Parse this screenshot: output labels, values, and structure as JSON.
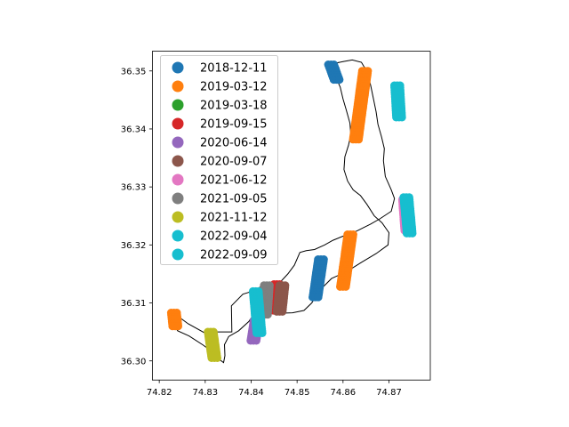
{
  "chart_data": {
    "type": "scatter",
    "title": "",
    "xlabel": "",
    "ylabel": "",
    "xlim": [
      74.8185,
      74.879
    ],
    "ylim": [
      36.2967,
      36.3534
    ],
    "grid": false,
    "legend_position": "top-left",
    "x_ticks": [
      {
        "value": 74.82,
        "label": "74.82"
      },
      {
        "value": 74.83,
        "label": "74.83"
      },
      {
        "value": 74.84,
        "label": "74.84"
      },
      {
        "value": 74.85,
        "label": "74.85"
      },
      {
        "value": 74.86,
        "label": "74.86"
      },
      {
        "value": 74.87,
        "label": "74.87"
      }
    ],
    "y_ticks": [
      {
        "value": 36.3,
        "label": "36.30"
      },
      {
        "value": 36.31,
        "label": "36.31"
      },
      {
        "value": 36.32,
        "label": "36.32"
      },
      {
        "value": 36.33,
        "label": "36.33"
      },
      {
        "value": 36.34,
        "label": "36.34"
      },
      {
        "value": 36.35,
        "label": "36.35"
      }
    ],
    "boundary": [
      [
        74.8575,
        36.3512
      ],
      [
        74.8582,
        36.3505
      ],
      [
        74.8585,
        36.3488
      ],
      [
        74.8594,
        36.3472
      ],
      [
        74.86,
        36.3452
      ],
      [
        74.8607,
        36.3433
      ],
      [
        74.8615,
        36.341
      ],
      [
        74.8617,
        36.339
      ],
      [
        74.8612,
        36.3372
      ],
      [
        74.8604,
        36.3352
      ],
      [
        74.8602,
        36.333
      ],
      [
        74.861,
        36.331
      ],
      [
        74.8622,
        36.3295
      ],
      [
        74.8638,
        36.3285
      ],
      [
        74.8652,
        36.327
      ],
      [
        74.8668,
        36.325
      ],
      [
        74.8685,
        36.3238
      ],
      [
        74.87,
        36.3221
      ],
      [
        74.8698,
        36.32
      ],
      [
        74.8672,
        36.3185
      ],
      [
        74.864,
        36.317
      ],
      [
        74.861,
        36.3155
      ],
      [
        74.8575,
        36.3142
      ],
      [
        74.8547,
        36.312
      ],
      [
        74.8532,
        36.31
      ],
      [
        74.8515,
        36.3087
      ],
      [
        74.849,
        36.3083
      ],
      [
        74.8455,
        36.3082
      ],
      [
        74.842,
        36.3082
      ],
      [
        74.8405,
        36.308
      ],
      [
        74.8395,
        36.3068
      ],
      [
        74.8373,
        36.3052
      ],
      [
        74.8351,
        36.3042
      ],
      [
        74.8342,
        36.3028
      ],
      [
        74.8343,
        36.3009
      ],
      [
        74.834,
        36.2997
      ],
      [
        74.833,
        36.3003
      ],
      [
        74.8316,
        36.3015
      ],
      [
        74.8296,
        36.3027
      ],
      [
        74.8265,
        36.3043
      ],
      [
        74.824,
        36.3052
      ],
      [
        74.8227,
        36.3069
      ],
      [
        74.8221,
        36.3084
      ],
      [
        74.8232,
        36.3082
      ],
      [
        74.8263,
        36.3064
      ],
      [
        74.8297,
        36.3049
      ],
      [
        74.8325,
        36.305
      ],
      [
        74.8346,
        36.305
      ],
      [
        74.8358,
        36.305
      ],
      [
        74.8357,
        36.3095
      ],
      [
        74.8382,
        36.3115
      ],
      [
        74.841,
        36.3122
      ],
      [
        74.8426,
        36.3131
      ],
      [
        74.8445,
        36.3132
      ],
      [
        74.846,
        36.3133
      ],
      [
        74.848,
        36.315
      ],
      [
        74.8494,
        36.3165
      ],
      [
        74.8506,
        36.3187
      ],
      [
        74.852,
        36.319
      ],
      [
        74.8538,
        36.3192
      ],
      [
        74.856,
        36.32
      ],
      [
        74.8578,
        36.3208
      ],
      [
        74.86,
        36.3215
      ],
      [
        74.8615,
        36.322
      ],
      [
        74.863,
        36.3224
      ],
      [
        74.866,
        36.3236
      ],
      [
        74.868,
        36.3245
      ],
      [
        74.8705,
        36.3258
      ],
      [
        74.8712,
        36.328
      ],
      [
        74.8705,
        36.3295
      ],
      [
        74.8692,
        36.3318
      ],
      [
        74.8688,
        36.3345
      ],
      [
        74.869,
        36.3366
      ],
      [
        74.8684,
        36.3386
      ],
      [
        74.8676,
        36.3408
      ],
      [
        74.8672,
        36.343
      ],
      [
        74.8666,
        36.3453
      ],
      [
        74.866,
        36.3476
      ],
      [
        74.8652,
        36.3499
      ],
      [
        74.864,
        36.3515
      ],
      [
        74.862,
        36.3519
      ],
      [
        74.86,
        36.3516
      ],
      [
        74.8575,
        36.3512
      ]
    ],
    "series": [
      {
        "name": "2018-12-11",
        "color": "#1f77b4",
        "segments": [
          {
            "x1": 74.8574,
            "y1": 36.3511,
            "x2": 74.8586,
            "y2": 36.3485
          },
          {
            "x1": 74.8552,
            "y1": 36.3175,
            "x2": 74.854,
            "y2": 36.311
          }
        ]
      },
      {
        "name": "2019-03-12",
        "color": "#ff7f0e",
        "segments": [
          {
            "x1": 74.8648,
            "y1": 36.35,
            "x2": 74.8628,
            "y2": 36.3382
          },
          {
            "x1": 74.8616,
            "y1": 36.3218,
            "x2": 74.86,
            "y2": 36.3128
          },
          {
            "x1": 74.8232,
            "y1": 36.3083,
            "x2": 74.8235,
            "y2": 36.306
          }
        ]
      },
      {
        "name": "2019-03-18",
        "color": "#2ca02c",
        "segments": []
      },
      {
        "name": "2019-09-15",
        "color": "#d62728",
        "segments": [
          {
            "x1": 74.8456,
            "y1": 36.3132,
            "x2": 74.8455,
            "y2": 36.3087
          }
        ]
      },
      {
        "name": "2020-06-14",
        "color": "#9467bd",
        "segments": [
          {
            "x1": 74.8412,
            "y1": 36.307,
            "x2": 74.8405,
            "y2": 36.3035
          }
        ]
      },
      {
        "name": "2020-09-07",
        "color": "#8c564b",
        "segments": [
          {
            "x1": 74.8468,
            "y1": 36.313,
            "x2": 74.8462,
            "y2": 36.3085
          }
        ]
      },
      {
        "name": "2021-06-12",
        "color": "#e377c2",
        "segments": [
          {
            "x1": 74.8735,
            "y1": 36.3278,
            "x2": 74.874,
            "y2": 36.3225
          }
        ]
      },
      {
        "name": "2021-09-05",
        "color": "#7f7f7f",
        "segments": [
          {
            "x1": 74.8434,
            "y1": 36.313,
            "x2": 74.843,
            "y2": 36.308
          }
        ]
      },
      {
        "name": "2021-11-12",
        "color": "#bcbd22",
        "segments": [
          {
            "x1": 74.8312,
            "y1": 36.305,
            "x2": 74.832,
            "y2": 36.3005
          }
        ]
      },
      {
        "name": "2022-09-04",
        "color": "#17becf",
        "segments": [
          {
            "x1": 74.8718,
            "y1": 36.3475,
            "x2": 74.8722,
            "y2": 36.342
          },
          {
            "x1": 74.8738,
            "y1": 36.3282,
            "x2": 74.8745,
            "y2": 36.322
          }
        ]
      },
      {
        "name": "2022-09-09",
        "color": "#17becf",
        "segments": [
          {
            "x1": 74.841,
            "y1": 36.312,
            "x2": 74.8418,
            "y2": 36.3048
          }
        ]
      }
    ]
  }
}
